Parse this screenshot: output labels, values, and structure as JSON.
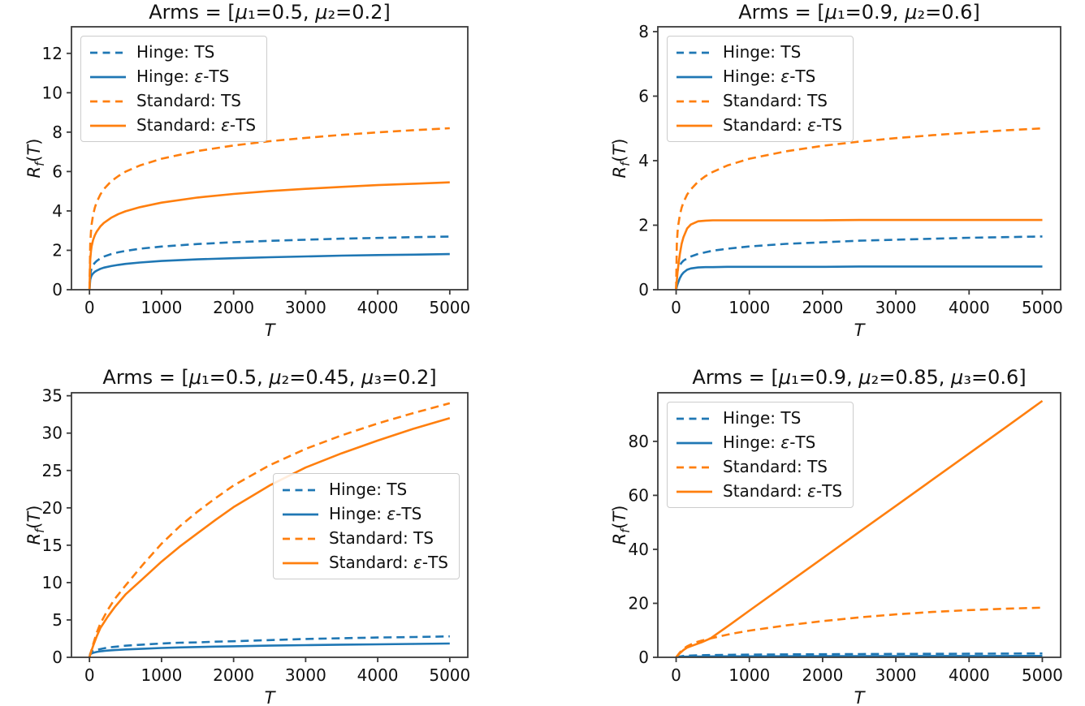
{
  "figure": {
    "background": "#ffffff",
    "accent_colors": {
      "blue": "#1f77b4",
      "orange": "#ff7f0e",
      "spine": "#3b3b3b",
      "text": "#111111"
    }
  },
  "chart_data": [
    {
      "type": "line",
      "title": "Arms = [μ₁=0.5, μ₂=0.2]",
      "xlabel": "T",
      "ylabel": "R_f(T)",
      "xlim": [
        -250,
        5250
      ],
      "ylim": [
        0,
        13.35
      ],
      "xticks": [
        0,
        1000,
        2000,
        3000,
        4000,
        5000
      ],
      "yticks": [
        0,
        2,
        4,
        6,
        8,
        10,
        12
      ],
      "grid": false,
      "legend_loc": "upper-left",
      "series": [
        {
          "name": "Hinge: TS",
          "color": "#1f77b4",
          "dash": true,
          "x": [
            0,
            10,
            20,
            30,
            50,
            75,
            100,
            150,
            200,
            300,
            400,
            500,
            700,
            1000,
            1500,
            2000,
            2500,
            3000,
            3500,
            4000,
            4500,
            5000
          ],
          "y": [
            0,
            0.76,
            0.96,
            1.09,
            1.25,
            1.37,
            1.46,
            1.59,
            1.68,
            1.81,
            1.9,
            1.97,
            2.08,
            2.19,
            2.32,
            2.41,
            2.48,
            2.54,
            2.59,
            2.63,
            2.67,
            2.7
          ]
        },
        {
          "name": "Hinge: ε-TS",
          "color": "#1f77b4",
          "dash": false,
          "x": [
            0,
            10,
            20,
            30,
            50,
            75,
            100,
            150,
            200,
            300,
            400,
            500,
            700,
            1000,
            1500,
            2000,
            2500,
            3000,
            3500,
            4000,
            4500,
            5000
          ],
          "y": [
            0,
            0.51,
            0.64,
            0.72,
            0.83,
            0.91,
            0.97,
            1.06,
            1.12,
            1.2,
            1.26,
            1.31,
            1.38,
            1.46,
            1.54,
            1.6,
            1.65,
            1.69,
            1.73,
            1.76,
            1.78,
            1.81
          ]
        },
        {
          "name": "Standard: TS",
          "color": "#ff7f0e",
          "dash": true,
          "x": [
            0,
            10,
            20,
            30,
            50,
            75,
            100,
            150,
            200,
            300,
            400,
            500,
            700,
            1000,
            1500,
            2000,
            2500,
            3000,
            3500,
            4000,
            4500,
            5000
          ],
          "y": [
            0,
            2.31,
            2.93,
            3.31,
            3.79,
            4.17,
            4.45,
            4.83,
            5.11,
            5.5,
            5.77,
            5.99,
            6.31,
            6.65,
            7.04,
            7.32,
            7.54,
            7.71,
            7.86,
            7.99,
            8.1,
            8.2
          ]
        },
        {
          "name": "Standard: ε-TS",
          "color": "#ff7f0e",
          "dash": false,
          "x": [
            0,
            10,
            20,
            30,
            50,
            75,
            100,
            150,
            200,
            300,
            400,
            500,
            700,
            1000,
            1500,
            2000,
            2500,
            3000,
            3500,
            4000,
            4500,
            5000
          ],
          "y": [
            0,
            1.53,
            1.95,
            2.2,
            2.52,
            2.77,
            2.95,
            3.21,
            3.39,
            3.65,
            3.84,
            3.98,
            4.19,
            4.42,
            4.68,
            4.86,
            5.01,
            5.12,
            5.22,
            5.31,
            5.38,
            5.45
          ]
        }
      ]
    },
    {
      "type": "line",
      "title": "Arms = [μ₁=0.9, μ₂=0.6]",
      "xlabel": "T",
      "ylabel": "R_f(T)",
      "xlim": [
        -250,
        5250
      ],
      "ylim": [
        0,
        8.15
      ],
      "xticks": [
        0,
        1000,
        2000,
        3000,
        4000,
        5000
      ],
      "yticks": [
        0,
        2,
        4,
        6,
        8
      ],
      "grid": false,
      "legend_loc": "upper-left",
      "series": [
        {
          "name": "Hinge: TS",
          "color": "#1f77b4",
          "dash": true,
          "x": [
            0,
            10,
            20,
            30,
            50,
            75,
            100,
            150,
            200,
            300,
            400,
            500,
            700,
            1000,
            1500,
            2000,
            2500,
            3000,
            3500,
            4000,
            4500,
            5000
          ],
          "y": [
            0,
            0.47,
            0.59,
            0.67,
            0.76,
            0.84,
            0.9,
            0.97,
            1.03,
            1.11,
            1.16,
            1.21,
            1.27,
            1.34,
            1.42,
            1.47,
            1.52,
            1.55,
            1.58,
            1.61,
            1.63,
            1.65
          ]
        },
        {
          "name": "Hinge: ε-TS",
          "color": "#1f77b4",
          "dash": false,
          "x": [
            0,
            10,
            20,
            30,
            50,
            75,
            100,
            150,
            200,
            300,
            400,
            500,
            700,
            1000,
            1500,
            2000,
            2500,
            3000,
            3500,
            4000,
            4500,
            5000
          ],
          "y": [
            0,
            0.09,
            0.17,
            0.24,
            0.36,
            0.46,
            0.53,
            0.62,
            0.66,
            0.69,
            0.7,
            0.7,
            0.71,
            0.71,
            0.71,
            0.71,
            0.72,
            0.72,
            0.72,
            0.72,
            0.72,
            0.72
          ]
        },
        {
          "name": "Standard: TS",
          "color": "#ff7f0e",
          "dash": true,
          "x": [
            0,
            10,
            20,
            30,
            50,
            75,
            100,
            150,
            200,
            300,
            400,
            500,
            700,
            1000,
            1500,
            2000,
            2500,
            3000,
            3500,
            4000,
            4500,
            5000
          ],
          "y": [
            0,
            1.41,
            1.79,
            2.02,
            2.31,
            2.54,
            2.71,
            2.95,
            3.11,
            3.35,
            3.52,
            3.65,
            3.85,
            4.06,
            4.29,
            4.46,
            4.59,
            4.7,
            4.79,
            4.87,
            4.94,
            5.0
          ]
        },
        {
          "name": "Standard: ε-TS",
          "color": "#ff7f0e",
          "dash": false,
          "x": [
            0,
            10,
            20,
            30,
            50,
            75,
            100,
            150,
            200,
            300,
            400,
            500,
            700,
            1000,
            1500,
            2000,
            2500,
            3000,
            3500,
            4000,
            4500,
            5000
          ],
          "y": [
            0,
            0.29,
            0.55,
            0.76,
            1.1,
            1.42,
            1.63,
            1.9,
            2.02,
            2.12,
            2.14,
            2.15,
            2.15,
            2.15,
            2.15,
            2.15,
            2.16,
            2.16,
            2.16,
            2.16,
            2.16,
            2.16
          ]
        }
      ]
    },
    {
      "type": "line",
      "title": "Arms = [μ₁=0.5, μ₂=0.45, μ₃=0.2]",
      "xlabel": "T",
      "ylabel": "R_f(T)",
      "xlim": [
        -250,
        5250
      ],
      "ylim": [
        0,
        35.4
      ],
      "xticks": [
        0,
        1000,
        2000,
        3000,
        4000,
        5000
      ],
      "yticks": [
        0,
        5,
        10,
        15,
        20,
        25,
        30,
        35
      ],
      "grid": false,
      "legend_loc": "center-right",
      "series": [
        {
          "name": "Hinge: TS",
          "color": "#1f77b4",
          "dash": true,
          "x": [
            0,
            10,
            25,
            50,
            100,
            150,
            250,
            350,
            500,
            750,
            1000,
            1250,
            1500,
            1750,
            2000,
            2500,
            3000,
            3500,
            4000,
            4500,
            5000
          ],
          "y": [
            0,
            0.5,
            0.7,
            0.85,
            1.0,
            1.1,
            1.3,
            1.4,
            1.55,
            1.7,
            1.85,
            1.95,
            2.0,
            2.1,
            2.15,
            2.3,
            2.45,
            2.55,
            2.65,
            2.72,
            2.8
          ]
        },
        {
          "name": "Hinge: ε-TS",
          "color": "#1f77b4",
          "dash": false,
          "x": [
            0,
            10,
            25,
            50,
            100,
            150,
            250,
            350,
            500,
            750,
            1000,
            1250,
            1500,
            1750,
            2000,
            2500,
            3000,
            3500,
            4000,
            4500,
            5000
          ],
          "y": [
            0,
            0.35,
            0.5,
            0.6,
            0.72,
            0.8,
            0.9,
            0.97,
            1.05,
            1.15,
            1.25,
            1.32,
            1.38,
            1.43,
            1.48,
            1.56,
            1.63,
            1.69,
            1.74,
            1.79,
            1.85
          ]
        },
        {
          "name": "Standard: TS",
          "color": "#ff7f0e",
          "dash": true,
          "x": [
            0,
            10,
            25,
            50,
            100,
            150,
            250,
            350,
            500,
            750,
            1000,
            1250,
            1500,
            1750,
            2000,
            2500,
            3000,
            3500,
            4000,
            4500,
            5000
          ],
          "y": [
            0,
            0.4,
            0.9,
            1.7,
            3.3,
            4.5,
            6.3,
            7.8,
            9.6,
            12.5,
            15.2,
            17.5,
            19.5,
            21.3,
            23.0,
            25.7,
            27.9,
            29.7,
            31.3,
            32.7,
            34.0
          ]
        },
        {
          "name": "Standard: ε-TS",
          "color": "#ff7f0e",
          "dash": false,
          "x": [
            0,
            10,
            25,
            50,
            100,
            150,
            250,
            350,
            500,
            750,
            1000,
            1250,
            1500,
            1750,
            2000,
            2500,
            3000,
            3500,
            4000,
            4500,
            5000
          ],
          "y": [
            0,
            0.35,
            0.8,
            1.5,
            2.8,
            3.9,
            5.4,
            6.7,
            8.4,
            10.6,
            12.8,
            14.8,
            16.6,
            18.4,
            20.1,
            23.0,
            25.4,
            27.3,
            29.0,
            30.6,
            32.0
          ]
        }
      ]
    },
    {
      "type": "line",
      "title": "Arms = [μ₁=0.9, μ₂=0.85, μ₃=0.6]",
      "xlabel": "T",
      "ylabel": "R_f(T)",
      "xlim": [
        -250,
        5250
      ],
      "ylim": [
        0,
        98
      ],
      "xticks": [
        0,
        1000,
        2000,
        3000,
        4000,
        5000
      ],
      "yticks": [
        0,
        20,
        40,
        60,
        80
      ],
      "grid": false,
      "legend_loc": "upper-left",
      "series": [
        {
          "name": "Hinge: TS",
          "color": "#1f77b4",
          "dash": true,
          "x": [
            0,
            50,
            100,
            150,
            250,
            350,
            470,
            750,
            1000,
            1500,
            2000,
            2500,
            3000,
            3500,
            4000,
            4500,
            5000
          ],
          "y": [
            0,
            0.3,
            0.5,
            0.6,
            0.7,
            0.78,
            0.85,
            0.92,
            1.0,
            1.08,
            1.15,
            1.2,
            1.25,
            1.29,
            1.33,
            1.37,
            1.4
          ]
        },
        {
          "name": "Hinge: ε-TS",
          "color": "#1f77b4",
          "dash": false,
          "x": [
            0,
            50,
            100,
            150,
            250,
            350,
            470,
            750,
            1000,
            1500,
            2000,
            2500,
            3000,
            3500,
            4000,
            4500,
            5000
          ],
          "y": [
            0,
            0.12,
            0.2,
            0.24,
            0.28,
            0.31,
            0.33,
            0.35,
            0.37,
            0.4,
            0.42,
            0.44,
            0.45,
            0.47,
            0.48,
            0.49,
            0.5
          ]
        },
        {
          "name": "Standard: TS",
          "color": "#ff7f0e",
          "dash": true,
          "x": [
            0,
            50,
            100,
            150,
            250,
            350,
            470,
            750,
            1000,
            1500,
            2000,
            2500,
            3000,
            3500,
            4000,
            4500,
            5000
          ],
          "y": [
            0,
            1.8,
            3.2,
            4.1,
            5.4,
            6.2,
            7.0,
            8.7,
            9.9,
            11.8,
            13.4,
            14.8,
            15.9,
            16.8,
            17.5,
            18.0,
            18.4
          ]
        },
        {
          "name": "Standard: ε-TS",
          "color": "#ff7f0e",
          "dash": false,
          "x": [
            0,
            50,
            100,
            150,
            250,
            350,
            470,
            750,
            1000,
            1500,
            2000,
            2500,
            3000,
            3500,
            4000,
            4500,
            5000
          ],
          "y": [
            0,
            1.5,
            2.7,
            3.6,
            4.6,
            5.6,
            7.0,
            12.4,
            17.3,
            27.0,
            36.7,
            46.4,
            56.1,
            65.8,
            75.5,
            85.2,
            95.0
          ]
        }
      ]
    }
  ]
}
